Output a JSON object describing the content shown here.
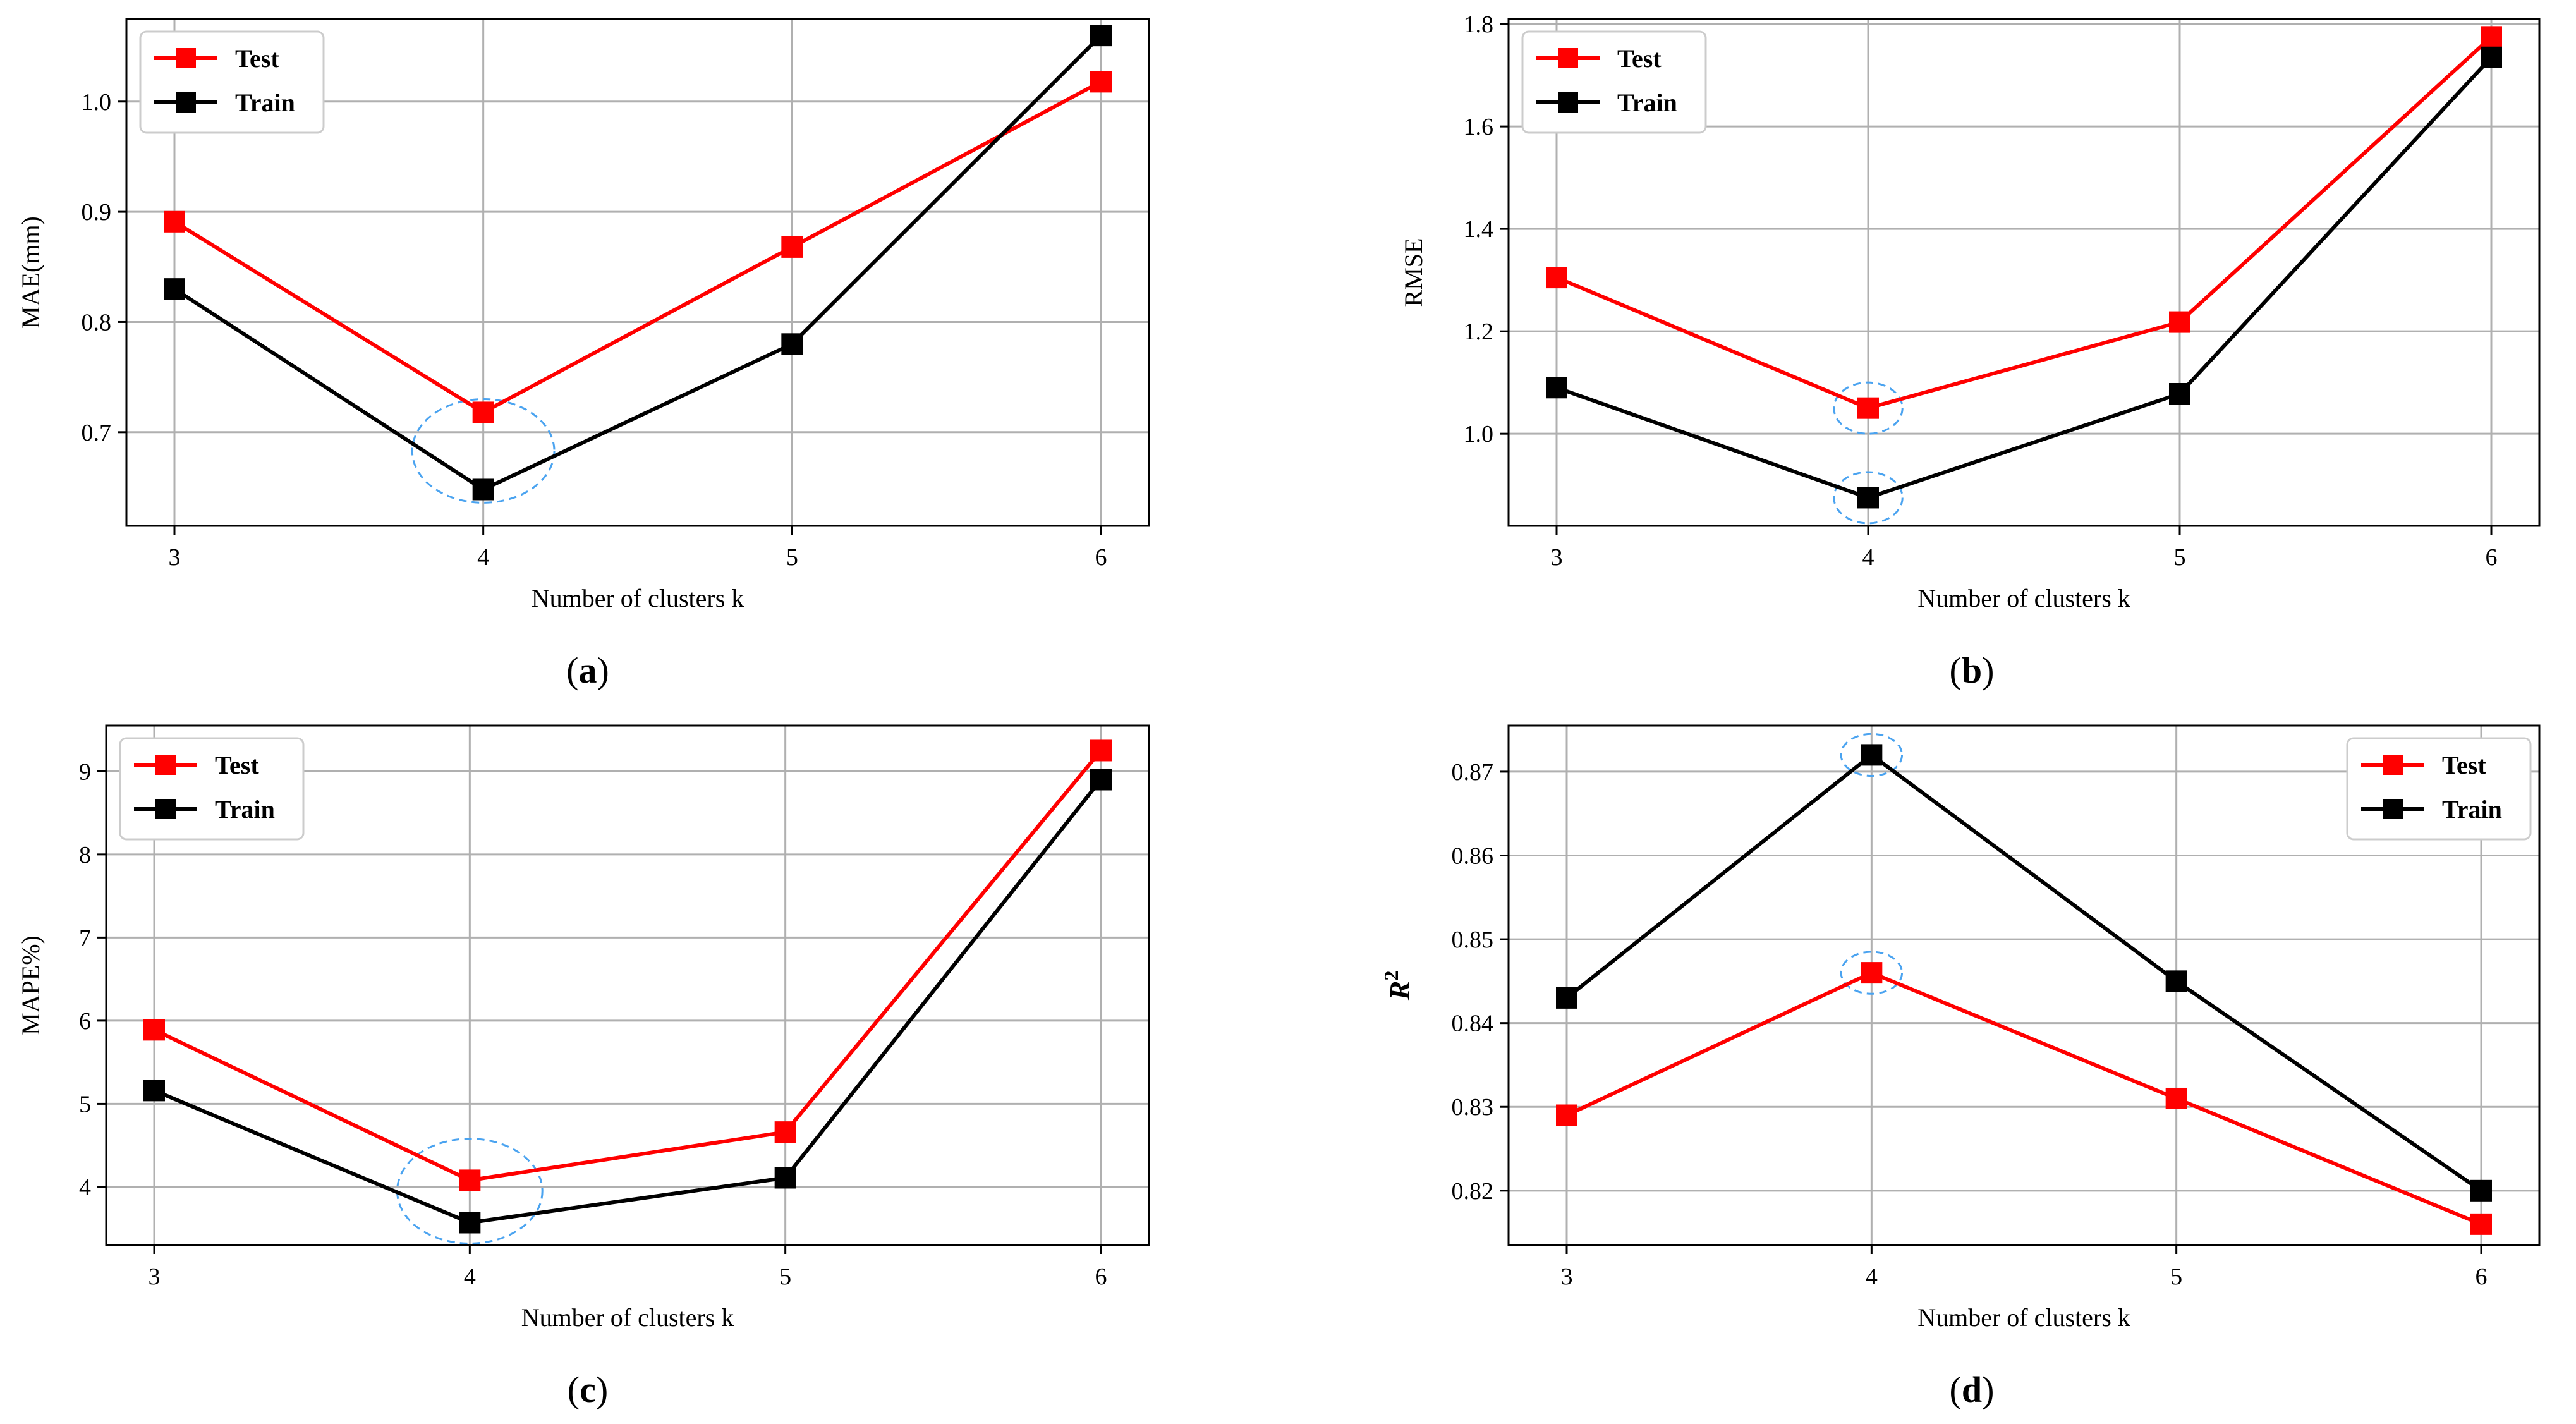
{
  "chart_data": [
    {
      "id": "a",
      "type": "line",
      "caption": "a",
      "title": "",
      "xlabel": "Number of clusters k",
      "ylabel": "MAE(mm)",
      "ylabel_sup": "",
      "x": [
        3,
        4,
        5,
        6
      ],
      "xticks": [
        "3",
        "4",
        "5",
        "6"
      ],
      "ylim": [
        0.615,
        1.075
      ],
      "yticks": [
        0.7,
        0.8,
        0.9,
        1.0
      ],
      "ytick_labels": [
        "0.7",
        "0.8",
        "0.9",
        "1.0"
      ],
      "grid": true,
      "legend_position": "top-left",
      "series": [
        {
          "name": "Test",
          "color": "#ff0000",
          "values": [
            0.891,
            0.718,
            0.868,
            1.018
          ]
        },
        {
          "name": "Train",
          "color": "#000000",
          "values": [
            0.83,
            0.648,
            0.78,
            1.06
          ]
        }
      ],
      "highlights": [
        {
          "x": 4,
          "y": 0.683,
          "rx": 0.23,
          "ry": 0.047
        }
      ]
    },
    {
      "id": "b",
      "type": "line",
      "caption": "b",
      "title": "",
      "xlabel": "Number of clusters k",
      "ylabel": "RMSE",
      "ylabel_sup": "",
      "x": [
        3,
        4,
        5,
        6
      ],
      "xticks": [
        "3",
        "4",
        "5",
        "6"
      ],
      "ylim": [
        0.82,
        1.81
      ],
      "yticks": [
        1.0,
        1.2,
        1.4,
        1.6,
        1.8
      ],
      "ytick_labels": [
        "1.0",
        "1.2",
        "1.4",
        "1.6",
        "1.8"
      ],
      "grid": true,
      "legend_position": "top-left",
      "series": [
        {
          "name": "Test",
          "color": "#ff0000",
          "values": [
            1.305,
            1.05,
            1.218,
            1.775
          ]
        },
        {
          "name": "Train",
          "color": "#000000",
          "values": [
            1.09,
            0.875,
            1.078,
            1.735
          ]
        }
      ],
      "highlights": [
        {
          "x": 4,
          "y": 1.05,
          "rx": 0.11,
          "ry": 0.05
        },
        {
          "x": 4,
          "y": 0.875,
          "rx": 0.11,
          "ry": 0.05
        }
      ]
    },
    {
      "id": "c",
      "type": "line",
      "caption": "c",
      "title": "",
      "xlabel": "Number of clusters k",
      "ylabel": "MAPE%)",
      "ylabel_sup": "",
      "x": [
        3,
        4,
        5,
        6
      ],
      "xticks": [
        "3",
        "4",
        "5",
        "6"
      ],
      "ylim": [
        3.3,
        9.55
      ],
      "yticks": [
        4,
        5,
        6,
        7,
        8,
        9
      ],
      "ytick_labels": [
        "4",
        "5",
        "6",
        "7",
        "8",
        "9"
      ],
      "grid": true,
      "legend_position": "top-left",
      "series": [
        {
          "name": "Test",
          "color": "#ff0000",
          "values": [
            5.89,
            4.08,
            4.66,
            9.25
          ]
        },
        {
          "name": "Train",
          "color": "#000000",
          "values": [
            5.16,
            3.57,
            4.11,
            8.9
          ]
        }
      ],
      "highlights": [
        {
          "x": 4,
          "y": 3.95,
          "rx": 0.23,
          "ry": 0.63
        }
      ]
    },
    {
      "id": "d",
      "type": "line",
      "caption": "d",
      "title": "",
      "xlabel": "Number of clusters k",
      "ylabel": "R",
      "ylabel_sup": "2",
      "x": [
        3,
        4,
        5,
        6
      ],
      "xticks": [
        "3",
        "4",
        "5",
        "6"
      ],
      "ylim": [
        0.8135,
        0.8755
      ],
      "yticks": [
        0.82,
        0.83,
        0.84,
        0.85,
        0.86,
        0.87
      ],
      "ytick_labels": [
        "0.82",
        "0.83",
        "0.84",
        "0.85",
        "0.86",
        "0.87"
      ],
      "grid": true,
      "legend_position": "top-right",
      "series": [
        {
          "name": "Test",
          "color": "#ff0000",
          "values": [
            0.829,
            0.846,
            0.831,
            0.816
          ]
        },
        {
          "name": "Train",
          "color": "#000000",
          "values": [
            0.843,
            0.872,
            0.845,
            0.82
          ]
        }
      ],
      "highlights": [
        {
          "x": 4,
          "y": 0.872,
          "rx": 0.1,
          "ry": 0.0025
        },
        {
          "x": 4,
          "y": 0.846,
          "rx": 0.1,
          "ry": 0.0025
        }
      ]
    }
  ],
  "colors": {
    "highlight": "#4aa3f0",
    "grid": "#b0b0b0"
  }
}
